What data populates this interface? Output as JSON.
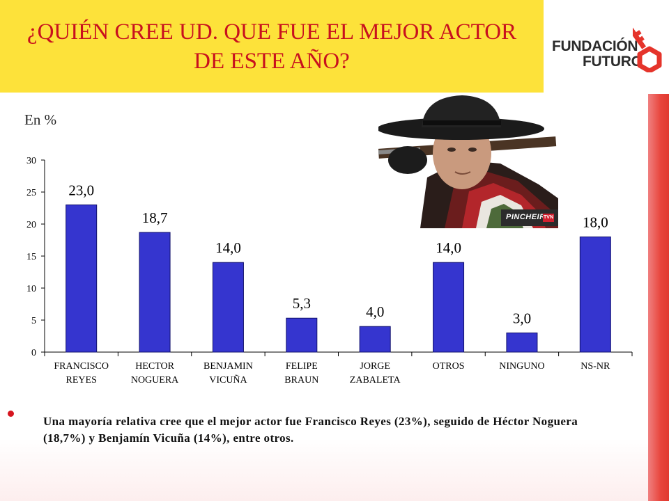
{
  "slide": {
    "title": "¿QUIÉN CREE UD. QUE FUE EL MEJOR ACTOR DE ESTE AÑO?",
    "unit_label": "En %",
    "bullet": "Una mayoría relativa cree que el mejor actor fue Francisco Reyes (23%), seguido de Héctor Noguera (18,7%) y Benjamín Vicuña (14%), entre otros."
  },
  "logo": {
    "line1": "FUNDACIÓN",
    "line2": "FUTURO",
    "accent_color": "#e5342b"
  },
  "photo": {
    "caption": "PINCHEIRA",
    "badge": "TVN"
  },
  "colors": {
    "title_band": "#fde23a",
    "title_text": "#c8101e",
    "bar_fill": "#3535cf",
    "bar_stroke": "#10106a",
    "stripe": "#e8453c"
  },
  "chart_data": {
    "type": "bar",
    "categories": [
      [
        "FRANCISCO",
        "REYES"
      ],
      [
        "HECTOR",
        "NOGUERA"
      ],
      [
        "BENJAMIN",
        "VICUÑA"
      ],
      [
        "FELIPE",
        "BRAUN"
      ],
      [
        "JORGE",
        "ZABALETA"
      ],
      [
        "OTROS"
      ],
      [
        "NINGUNO"
      ],
      [
        "NS-NR"
      ]
    ],
    "values": [
      23.0,
      18.7,
      14.0,
      5.3,
      4.0,
      14.0,
      3.0,
      18.0
    ],
    "data_labels": [
      "23,0",
      "18,7",
      "14,0",
      "5,3",
      "4,0",
      "14,0",
      "3,0",
      "18,0"
    ],
    "y_ticks": [
      "0",
      "5",
      "10",
      "15",
      "20",
      "25",
      "30"
    ],
    "ylim": [
      0,
      30
    ],
    "grid": false,
    "legend": "none"
  }
}
